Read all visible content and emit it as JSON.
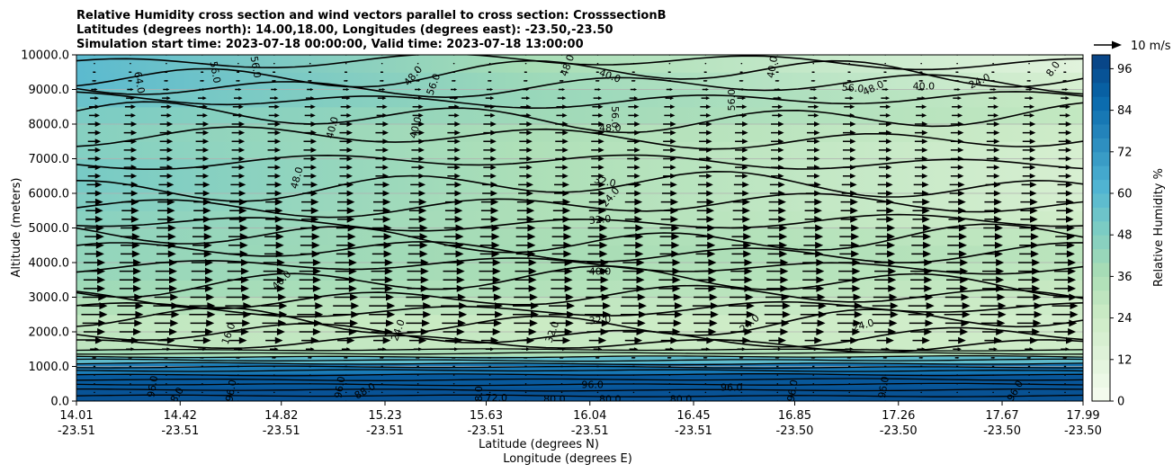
{
  "chart_data": {
    "type": "heatmap",
    "title_lines": [
      "Relative Humidity cross section and wind vectors parallel to cross section: CrosssectionB",
      "Latitudes (degrees north): 14.00,18.00, Longitudes (degrees east): -23.50,-23.50",
      "Simulation start time: 2023-07-18 00:00:00, Valid time: 2023-07-18 13:00:00"
    ],
    "xlabel_lines": [
      "Latitude (degrees N)",
      "Longitude (degrees E)"
    ],
    "ylabel": "Altitude (meters)",
    "colorbar_label": "Relative Humidity %",
    "quiver_key_label": "10 m/s",
    "x_tick_labels": [
      {
        "lat": "14.01",
        "lon": "-23.51"
      },
      {
        "lat": "14.42",
        "lon": "-23.51"
      },
      {
        "lat": "14.82",
        "lon": "-23.51"
      },
      {
        "lat": "15.23",
        "lon": "-23.51"
      },
      {
        "lat": "15.63",
        "lon": "-23.51"
      },
      {
        "lat": "16.04",
        "lon": "-23.51"
      },
      {
        "lat": "16.45",
        "lon": "-23.51"
      },
      {
        "lat": "16.85",
        "lon": "-23.50"
      },
      {
        "lat": "17.26",
        "lon": "-23.50"
      },
      {
        "lat": "17.67",
        "lon": "-23.50"
      },
      {
        "lat": "17.99",
        "lon": "-23.50"
      }
    ],
    "y_ticks": [
      0,
      1000,
      2000,
      3000,
      4000,
      5000,
      6000,
      7000,
      8000,
      9000,
      10000
    ],
    "y_tick_labels": [
      "0.0",
      "1000.0",
      "2000.0",
      "3000.0",
      "4000.0",
      "5000.0",
      "6000.0",
      "7000.0",
      "8000.0",
      "9000.0",
      "10000.0"
    ],
    "ylim": [
      0,
      10000
    ],
    "colorbar_ticks": [
      0,
      12,
      24,
      36,
      48,
      60,
      72,
      84,
      96
    ],
    "colorbar_tick_labels": [
      "0",
      "12",
      "24",
      "36",
      "48",
      "60",
      "72",
      "84",
      "96"
    ],
    "colorbar_range": [
      0,
      100
    ],
    "grid": "horizontal",
    "colormap": [
      "#f7fcf0",
      "#e0f3db",
      "#ccebc5",
      "#a8ddb5",
      "#7bccc4",
      "#4eb3d3",
      "#2b8cbe",
      "#0868ac",
      "#084081"
    ],
    "contour_levels": [
      8,
      16,
      24,
      32,
      40,
      48,
      56,
      64,
      72,
      80,
      88,
      96
    ],
    "rh_profile": {
      "altitude": [
        0,
        400,
        800,
        1100,
        1300,
        1500,
        2000,
        2500,
        3000,
        3500,
        4000,
        4500,
        5000,
        5500,
        6000,
        6500,
        7000,
        7500,
        8000,
        8500,
        9000,
        9500,
        10000
      ],
      "rh_left": [
        95,
        93,
        90,
        70,
        45,
        32,
        28,
        30,
        38,
        42,
        43,
        44,
        45,
        48,
        50,
        52,
        50,
        46,
        48,
        52,
        58,
        60,
        58
      ],
      "rh_right": [
        95,
        94,
        92,
        75,
        40,
        25,
        20,
        22,
        25,
        28,
        30,
        32,
        24,
        20,
        18,
        18,
        18,
        20,
        26,
        30,
        22,
        14,
        10
      ]
    },
    "wind": {
      "x_count": 28,
      "altitudes": [
        0,
        250,
        500,
        750,
        1000,
        1250,
        1500,
        1750,
        2000,
        2250,
        2500,
        2750,
        3000,
        3250,
        3500,
        3750,
        4000,
        4250,
        4500,
        4750,
        5000,
        5250,
        5500,
        5750,
        6000,
        6250,
        6500,
        6750,
        7000,
        7250,
        7500,
        7750,
        8000,
        8250,
        8500,
        8750,
        9000,
        9250,
        9500,
        9750,
        10000
      ],
      "speed_ms": [
        0.2,
        0.2,
        0.3,
        0.3,
        0.5,
        1.0,
        2.0,
        4.0,
        5.0,
        5.5,
        6.0,
        6.0,
        5.5,
        5.0,
        5.0,
        5.0,
        5.0,
        4.5,
        4.5,
        4.5,
        4.5,
        4.0,
        4.0,
        4.0,
        3.5,
        3.5,
        3.0,
        3.0,
        3.0,
        3.0,
        3.0,
        3.0,
        3.0,
        2.5,
        2.5,
        2.0,
        1.5,
        1.0,
        0.7,
        0.3,
        0.2
      ],
      "reference_speed_ms": 10
    },
    "contour_labels": [
      {
        "text": "64.0",
        "lat": 14.26,
        "alt": 9200,
        "rot": 80
      },
      {
        "text": "56.0",
        "lat": 14.56,
        "alt": 9500,
        "rot": 80
      },
      {
        "text": "56.0",
        "lat": 14.72,
        "alt": 9650,
        "rot": 80
      },
      {
        "text": "48.0",
        "lat": 14.88,
        "alt": 6450,
        "rot": -75
      },
      {
        "text": "40.0",
        "lat": 15.02,
        "alt": 7900,
        "rot": -75
      },
      {
        "text": "40.0",
        "lat": 15.35,
        "alt": 7900,
        "rot": -75
      },
      {
        "text": "48.0",
        "lat": 15.34,
        "alt": 9400,
        "rot": -50
      },
      {
        "text": "56.0",
        "lat": 15.42,
        "alt": 9150,
        "rot": -70
      },
      {
        "text": "48.0",
        "lat": 15.95,
        "alt": 9700,
        "rot": -70
      },
      {
        "text": "40.0",
        "lat": 16.12,
        "alt": 9400,
        "rot": 20
      },
      {
        "text": "56.0",
        "lat": 16.14,
        "alt": 8200,
        "rot": 90
      },
      {
        "text": "56.0",
        "lat": 16.6,
        "alt": 8700,
        "rot": -90
      },
      {
        "text": "40.0",
        "lat": 16.76,
        "alt": 9650,
        "rot": -80
      },
      {
        "text": "48.0",
        "lat": 16.12,
        "alt": 7900,
        "rot": 0
      },
      {
        "text": "56.0",
        "lat": 17.08,
        "alt": 9050,
        "rot": 5
      },
      {
        "text": "48.0",
        "lat": 17.16,
        "alt": 9050,
        "rot": -25
      },
      {
        "text": "40.0",
        "lat": 17.36,
        "alt": 9100,
        "rot": 0
      },
      {
        "text": "24.0",
        "lat": 17.58,
        "alt": 9250,
        "rot": -25
      },
      {
        "text": "8.0",
        "lat": 17.87,
        "alt": 9600,
        "rot": -55
      },
      {
        "text": "32.0",
        "lat": 16.1,
        "alt": 6350,
        "rot": 12
      },
      {
        "text": "24.0",
        "lat": 16.12,
        "alt": 5900,
        "rot": -50
      },
      {
        "text": "32.0",
        "lat": 16.08,
        "alt": 5250,
        "rot": -5
      },
      {
        "text": "40.0",
        "lat": 16.08,
        "alt": 3750,
        "rot": 0
      },
      {
        "text": "32.0",
        "lat": 16.08,
        "alt": 2350,
        "rot": -5
      },
      {
        "text": "24.0",
        "lat": 16.67,
        "alt": 2250,
        "rot": -40
      },
      {
        "text": "24.0",
        "lat": 17.12,
        "alt": 2200,
        "rot": -15
      },
      {
        "text": "40.0",
        "lat": 14.82,
        "alt": 3500,
        "rot": -45
      },
      {
        "text": "24.0",
        "lat": 15.28,
        "alt": 2050,
        "rot": -70
      },
      {
        "text": "32.0",
        "lat": 15.89,
        "alt": 2000,
        "rot": -70
      },
      {
        "text": "16.0",
        "lat": 14.61,
        "alt": 1950,
        "rot": -70
      },
      {
        "text": "96.0",
        "lat": 14.31,
        "alt": 420,
        "rot": -80
      },
      {
        "text": "88.0",
        "lat": 14.4,
        "alt": 100,
        "rot": -60
      },
      {
        "text": "96.0",
        "lat": 14.62,
        "alt": 300,
        "rot": -80
      },
      {
        "text": "96.0",
        "lat": 15.05,
        "alt": 400,
        "rot": -80
      },
      {
        "text": "88.0",
        "lat": 15.15,
        "alt": 300,
        "rot": -30
      },
      {
        "text": "72.0",
        "lat": 15.67,
        "alt": 100,
        "rot": 0
      },
      {
        "text": "80.0",
        "lat": 15.9,
        "alt": 60,
        "rot": 0
      },
      {
        "text": "96.0",
        "lat": 16.05,
        "alt": 480,
        "rot": 0
      },
      {
        "text": "80.0",
        "lat": 16.12,
        "alt": 60,
        "rot": 0
      },
      {
        "text": "80.0",
        "lat": 16.4,
        "alt": 60,
        "rot": 0
      },
      {
        "text": "96.0",
        "lat": 16.84,
        "alt": 300,
        "rot": -80
      },
      {
        "text": "96.0",
        "lat": 17.2,
        "alt": 400,
        "rot": -80
      },
      {
        "text": "96.0",
        "lat": 17.72,
        "alt": 300,
        "rot": -60
      },
      {
        "text": "96.0",
        "lat": 16.6,
        "alt": 400,
        "rot": 0
      },
      {
        "text": "88.0",
        "lat": 15.6,
        "alt": 120,
        "rot": -90
      }
    ]
  }
}
